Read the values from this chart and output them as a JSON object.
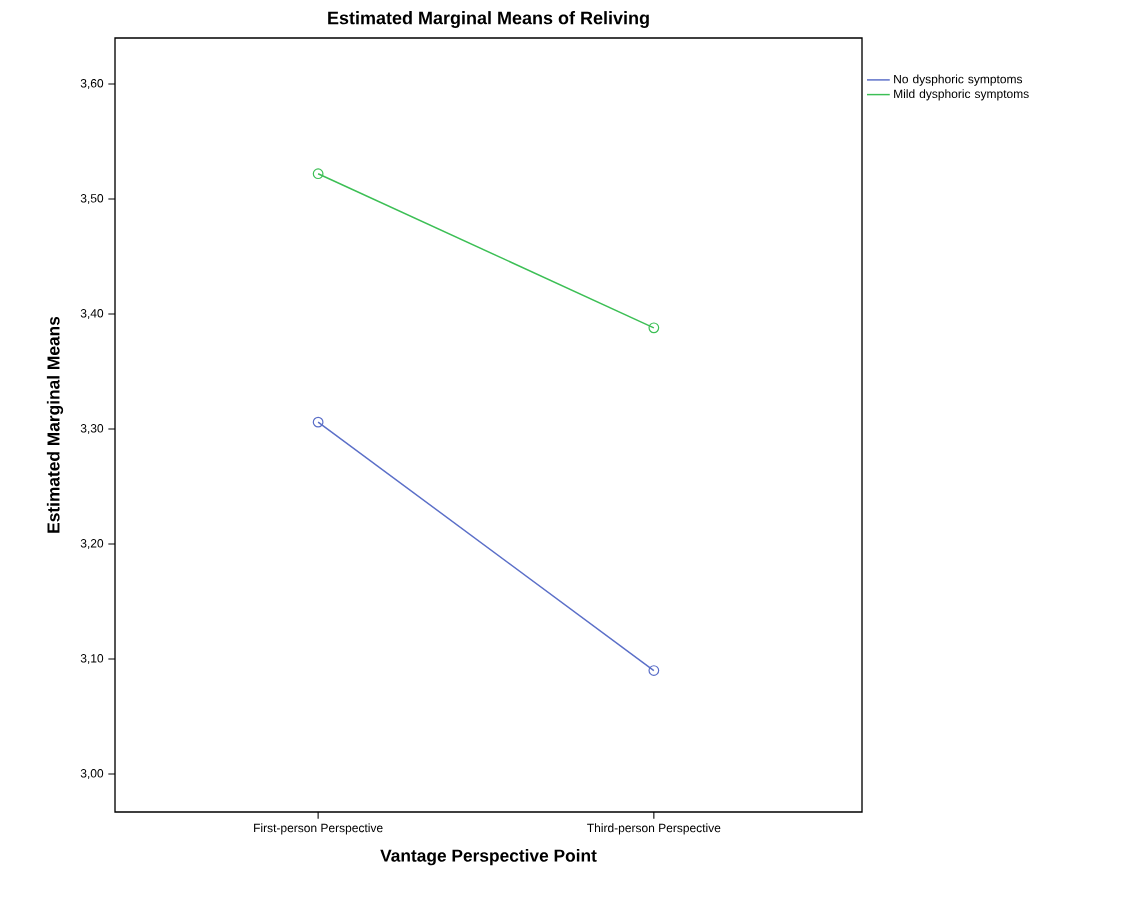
{
  "chart_data": {
    "type": "line",
    "title": "Estimated Marginal Means of Reliving",
    "xlabel": "Vantage Perspective Point",
    "ylabel": "Estimated Marginal Means",
    "categories": [
      "First-person Perspective",
      "Third-person Perspective"
    ],
    "series": [
      {
        "name": "No dysphoric symptoms",
        "color": "#5b6fc8",
        "values": [
          3.306,
          3.09
        ]
      },
      {
        "name": "Mild dysphoric symptoms",
        "color": "#3cbf55",
        "values": [
          3.522,
          3.388
        ]
      }
    ],
    "ylim": [
      2.967,
      3.64
    ],
    "yticks": [
      {
        "value": 3.0,
        "label": "3,00"
      },
      {
        "value": 3.1,
        "label": "3,10"
      },
      {
        "value": 3.2,
        "label": "3,20"
      },
      {
        "value": 3.3,
        "label": "3,30"
      },
      {
        "value": 3.4,
        "label": "3,40"
      },
      {
        "value": 3.5,
        "label": "3,50"
      },
      {
        "value": 3.6,
        "label": "3,60"
      }
    ],
    "marker": "circle",
    "line_style": "solid",
    "legend": "top right",
    "grid": false
  }
}
